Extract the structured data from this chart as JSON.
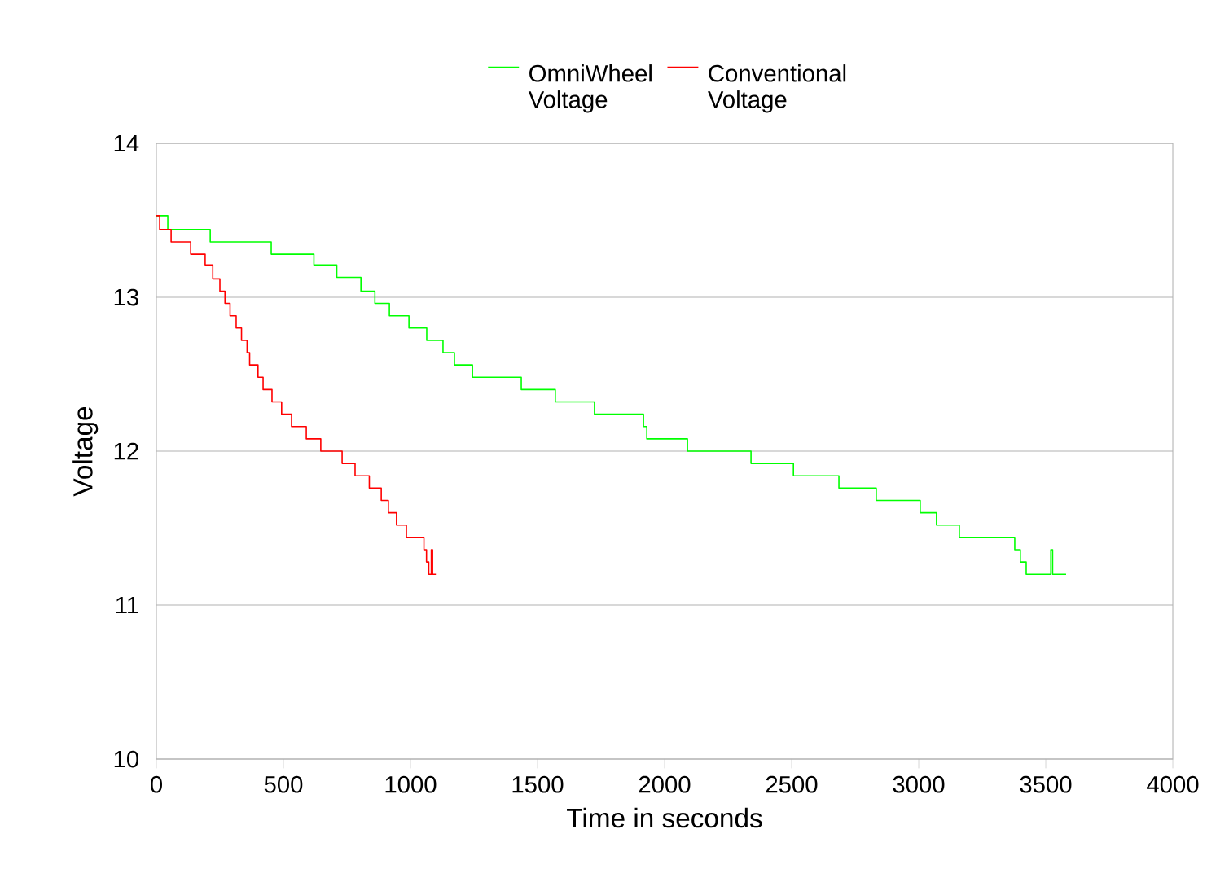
{
  "chart_data": {
    "type": "step",
    "xlabel": "Time in seconds",
    "ylabel": "Voltage",
    "xlim": [
      0,
      4000
    ],
    "ylim": [
      10,
      14
    ],
    "xticks": [
      0,
      500,
      1000,
      1500,
      2000,
      2500,
      3000,
      3500,
      4000
    ],
    "yticks": [
      10,
      11,
      12,
      13,
      14
    ],
    "grid": "y",
    "legend": "top",
    "marker": "none",
    "line_style": "solid",
    "series": [
      {
        "name": "OmniWheel Voltage",
        "color": "#00ff00",
        "x": [
          0,
          45,
          212,
          452,
          620,
          710,
          805,
          860,
          917,
          994,
          1064,
          1128,
          1173,
          1244,
          1436,
          1570,
          1724,
          1917,
          1930,
          2090,
          2340,
          2507,
          2686,
          2833,
          3006,
          3070,
          3160,
          3378,
          3400,
          3423,
          3520,
          3527,
          3580
        ],
        "values": [
          13.53,
          13.44,
          13.36,
          13.28,
          13.21,
          13.13,
          13.04,
          12.96,
          12.88,
          12.8,
          12.72,
          12.64,
          12.56,
          12.48,
          12.4,
          12.32,
          12.24,
          12.16,
          12.08,
          12.0,
          11.92,
          11.84,
          11.76,
          11.68,
          11.6,
          11.52,
          11.44,
          11.36,
          11.28,
          11.2,
          11.36,
          11.2,
          11.2
        ]
      },
      {
        "name": "Conventional Voltage",
        "color": "#ff0000",
        "x": [
          0,
          13,
          58,
          135,
          192,
          222,
          250,
          270,
          290,
          314,
          335,
          357,
          367,
          400,
          420,
          455,
          493,
          532,
          590,
          647,
          731,
          782,
          838,
          885,
          913,
          945,
          984,
          1053,
          1063,
          1072,
          1082,
          1087,
          1100
        ],
        "values": [
          13.53,
          13.44,
          13.36,
          13.28,
          13.21,
          13.12,
          13.04,
          12.96,
          12.88,
          12.8,
          12.72,
          12.64,
          12.56,
          12.48,
          12.4,
          12.32,
          12.24,
          12.16,
          12.08,
          12.0,
          11.92,
          11.84,
          11.76,
          11.68,
          11.6,
          11.52,
          11.44,
          11.36,
          11.28,
          11.2,
          11.36,
          11.2,
          11.2
        ]
      }
    ]
  }
}
